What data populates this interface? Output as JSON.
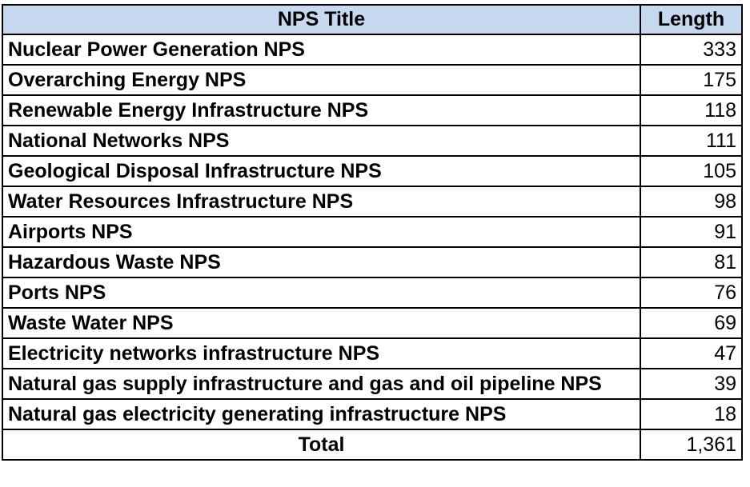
{
  "table": {
    "headers": [
      "NPS Title",
      "Length"
    ],
    "rows": [
      {
        "title": "Nuclear Power Generation NPS",
        "length": "333"
      },
      {
        "title": "Overarching Energy NPS",
        "length": "175"
      },
      {
        "title": "Renewable Energy Infrastructure NPS",
        "length": "118"
      },
      {
        "title": "National Networks NPS",
        "length": "111"
      },
      {
        "title": "Geological Disposal Infrastructure NPS",
        "length": "105"
      },
      {
        "title": "Water Resources Infrastructure NPS",
        "length": "98"
      },
      {
        "title": "Airports NPS",
        "length": "91"
      },
      {
        "title": "Hazardous Waste NPS",
        "length": "81"
      },
      {
        "title": "Ports NPS",
        "length": "76"
      },
      {
        "title": "Waste Water NPS",
        "length": "69"
      },
      {
        "title": "Electricity networks infrastructure NPS",
        "length": "47"
      },
      {
        "title": "Natural gas supply infrastructure and gas and oil pipeline NPS",
        "length": "39"
      },
      {
        "title": "Natural gas electricity generating infrastructure NPS",
        "length": "18"
      }
    ],
    "total": {
      "label": "Total",
      "length": "1,361"
    },
    "header_color": "#c6d9f0"
  }
}
